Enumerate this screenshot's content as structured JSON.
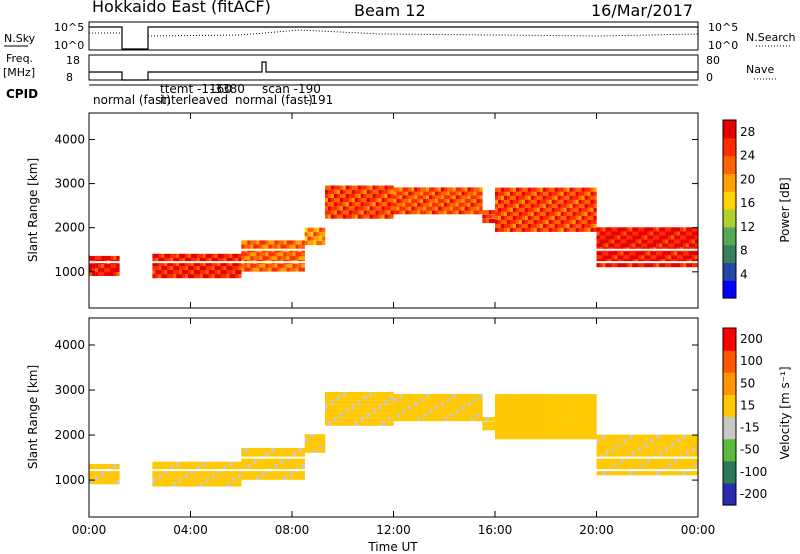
{
  "header": {
    "title": "Hokkaido East (fitACF)",
    "beam": "Beam 12",
    "date": "16/Mar/2017"
  },
  "strips": {
    "nsky": {
      "label": "N.Sky",
      "ticks": [
        "10^5",
        "10^0"
      ],
      "right_label": "N.Search",
      "right_ticks": [
        "10^5",
        "10^0"
      ]
    },
    "freq": {
      "label_line1": "Freq.",
      "label_line2": "[MHz]",
      "ticks": [
        "18",
        "8"
      ],
      "right_label": "Nave",
      "right_ticks": [
        "80",
        "0"
      ]
    },
    "cpid": {
      "label": "CPID",
      "entries": [
        "normal (fast)",
        "interleaved",
        "-3380",
        "ttemt -1160",
        "scan -190",
        "normal (fast)",
        "-191"
      ]
    }
  },
  "chart_data": [
    {
      "type": "heatmap",
      "name": "power",
      "ylabel": "Slant Range [km]",
      "yticks": [
        1000,
        2000,
        3000,
        4000
      ],
      "ylim": [
        180,
        4600
      ],
      "xlabel": "Time UT",
      "xticks": [
        "00:00",
        "04:00",
        "08:00",
        "12:00",
        "16:00",
        "20:00",
        "00:00"
      ],
      "xlim_hours": [
        0,
        24
      ],
      "colorbar": {
        "label": "Power [dB]",
        "ticks": [
          4,
          8,
          12,
          16,
          20,
          24,
          28
        ],
        "range": [
          0,
          30
        ],
        "colors": [
          "#0000ff",
          "#2346a8",
          "#37805a",
          "#55a855",
          "#b0d030",
          "#ffd400",
          "#ffa000",
          "#ff6400",
          "#ff2c00",
          "#e60000"
        ]
      },
      "bands": [
        {
          "t0": 0.0,
          "t1": 1.2,
          "r_low": 1000,
          "r_high": 1450,
          "level": 27
        },
        {
          "t0": 2.5,
          "t1": 6.0,
          "r_low": 950,
          "r_high": 1500,
          "level": 26
        },
        {
          "t0": 6.0,
          "t1": 8.5,
          "r_low": 1100,
          "r_high": 1800,
          "level": 22
        },
        {
          "t0": 8.5,
          "t1": 9.3,
          "r_low": 1700,
          "r_high": 2100,
          "level": 20
        },
        {
          "t0": 9.3,
          "t1": 12.0,
          "r_low": 2300,
          "r_high": 3050,
          "level": 24
        },
        {
          "t0": 12.0,
          "t1": 15.5,
          "r_low": 2400,
          "r_high": 3000,
          "level": 23
        },
        {
          "t0": 15.5,
          "t1": 16.0,
          "r_low": 2200,
          "r_high": 2500,
          "level": 25
        },
        {
          "t0": 16.0,
          "t1": 20.0,
          "r_low": 2000,
          "r_high": 3000,
          "level": 24
        },
        {
          "t0": 20.0,
          "t1": 24.0,
          "r_low": 1200,
          "r_high": 2100,
          "level": 27
        }
      ]
    },
    {
      "type": "heatmap",
      "name": "velocity",
      "ylabel": "Slant Range [km]",
      "yticks": [
        1000,
        2000,
        3000,
        4000
      ],
      "ylim": [
        180,
        4600
      ],
      "xlabel": "Time UT",
      "xticks": [
        "00:00",
        "04:00",
        "08:00",
        "12:00",
        "16:00",
        "20:00",
        "00:00"
      ],
      "xlim_hours": [
        0,
        24
      ],
      "colorbar": {
        "label": "Velocity [m s⁻¹]",
        "ticks": [
          200,
          100,
          50,
          15,
          -15,
          -50,
          -100,
          -200
        ],
        "range": [
          -250,
          250
        ],
        "colors": [
          "#2b2bb0",
          "#2a7a5a",
          "#5aba3a",
          "#c8c8c8",
          "#ffc800",
          "#ff9600",
          "#ff5a00",
          "#ff0000"
        ]
      },
      "bands": [
        {
          "t0": 0.0,
          "t1": 1.2,
          "r_low": 1000,
          "r_high": 1450,
          "level": 0
        },
        {
          "t0": 2.5,
          "t1": 6.0,
          "r_low": 950,
          "r_high": 1500,
          "level": 0
        },
        {
          "t0": 6.0,
          "t1": 8.5,
          "r_low": 1100,
          "r_high": 1800,
          "level": 0
        },
        {
          "t0": 8.5,
          "t1": 9.3,
          "r_low": 1700,
          "r_high": 2100,
          "level": 0
        },
        {
          "t0": 9.3,
          "t1": 12.0,
          "r_low": 2300,
          "r_high": 3050,
          "level": 0
        },
        {
          "t0": 12.0,
          "t1": 15.5,
          "r_low": 2400,
          "r_high": 3000,
          "level": 0
        },
        {
          "t0": 15.5,
          "t1": 16.0,
          "r_low": 2200,
          "r_high": 2500,
          "level": 0
        },
        {
          "t0": 16.0,
          "t1": 20.0,
          "r_low": 2000,
          "r_high": 3000,
          "level": 30
        },
        {
          "t0": 20.0,
          "t1": 24.0,
          "r_low": 1200,
          "r_high": 2100,
          "level": 0
        }
      ]
    }
  ]
}
